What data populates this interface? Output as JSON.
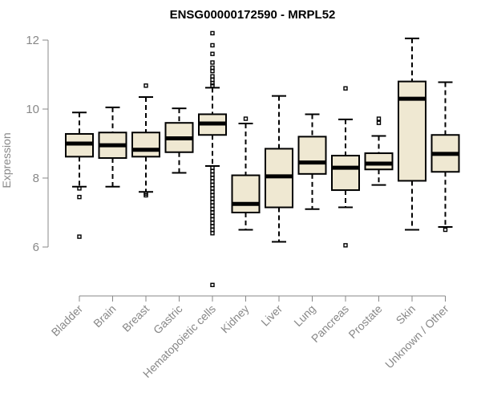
{
  "chart_data": {
    "type": "boxplot",
    "title": "ENSG00000172590 - MRPL52",
    "xlabel": "",
    "ylabel": "Expression",
    "ylim": [
      4.8,
      12.3
    ],
    "yticks": [
      6,
      8,
      10,
      12
    ],
    "box_color": "#efe8d2",
    "categories": [
      "Bladder",
      "Brain",
      "Breast",
      "Gastric",
      "Hematopoietic cells",
      "Kidney",
      "Liver",
      "Lung",
      "Pancreas",
      "Prostate",
      "Skin",
      "Unknown / Other"
    ],
    "series": [
      {
        "name": "Bladder",
        "whisker_low": 7.75,
        "q1": 8.62,
        "median": 9.0,
        "q3": 9.28,
        "whisker_high": 9.9,
        "outliers": [
          7.7,
          7.45,
          6.3
        ]
      },
      {
        "name": "Brain",
        "whisker_low": 7.75,
        "q1": 8.58,
        "median": 8.95,
        "q3": 9.32,
        "whisker_high": 10.05,
        "outliers": []
      },
      {
        "name": "Breast",
        "whisker_low": 7.6,
        "q1": 8.62,
        "median": 8.82,
        "q3": 9.32,
        "whisker_high": 10.35,
        "outliers": [
          10.68,
          7.55,
          7.5
        ]
      },
      {
        "name": "Gastric",
        "whisker_low": 8.15,
        "q1": 8.75,
        "median": 9.15,
        "q3": 9.6,
        "whisker_high": 10.02,
        "outliers": []
      },
      {
        "name": "Hematopoietic cells",
        "whisker_low": 8.35,
        "q1": 9.25,
        "median": 9.58,
        "q3": 9.85,
        "whisker_high": 10.62,
        "outliers": [
          12.2,
          11.85,
          11.6,
          11.35,
          11.2,
          11.1,
          10.95,
          10.85,
          10.75,
          10.68,
          8.3,
          8.2,
          8.1,
          8.0,
          7.9,
          7.8,
          7.7,
          7.6,
          7.5,
          7.4,
          7.3,
          7.2,
          7.1,
          7.0,
          6.9,
          6.8,
          6.7,
          6.6,
          6.5,
          6.4,
          4.9
        ]
      },
      {
        "name": "Kidney",
        "whisker_low": 6.5,
        "q1": 7.0,
        "median": 7.25,
        "q3": 8.08,
        "whisker_high": 9.58,
        "outliers": [
          9.72
        ]
      },
      {
        "name": "Liver",
        "whisker_low": 6.15,
        "q1": 7.15,
        "median": 8.05,
        "q3": 8.85,
        "whisker_high": 10.38,
        "outliers": []
      },
      {
        "name": "Lung",
        "whisker_low": 7.1,
        "q1": 8.12,
        "median": 8.45,
        "q3": 9.2,
        "whisker_high": 9.85,
        "outliers": []
      },
      {
        "name": "Pancreas",
        "whisker_low": 7.15,
        "q1": 7.65,
        "median": 8.3,
        "q3": 8.65,
        "whisker_high": 9.7,
        "outliers": [
          10.6,
          6.05
        ]
      },
      {
        "name": "Prostate",
        "whisker_low": 7.8,
        "q1": 8.25,
        "median": 8.42,
        "q3": 8.72,
        "whisker_high": 9.22,
        "outliers": [
          9.72,
          9.6
        ]
      },
      {
        "name": "Skin",
        "whisker_low": 6.5,
        "q1": 7.92,
        "median": 10.3,
        "q3": 10.8,
        "whisker_high": 12.05,
        "outliers": []
      },
      {
        "name": "Unknown / Other",
        "whisker_low": 6.58,
        "q1": 8.18,
        "median": 8.7,
        "q3": 9.25,
        "whisker_high": 10.78,
        "outliers": [
          6.5
        ]
      }
    ]
  }
}
